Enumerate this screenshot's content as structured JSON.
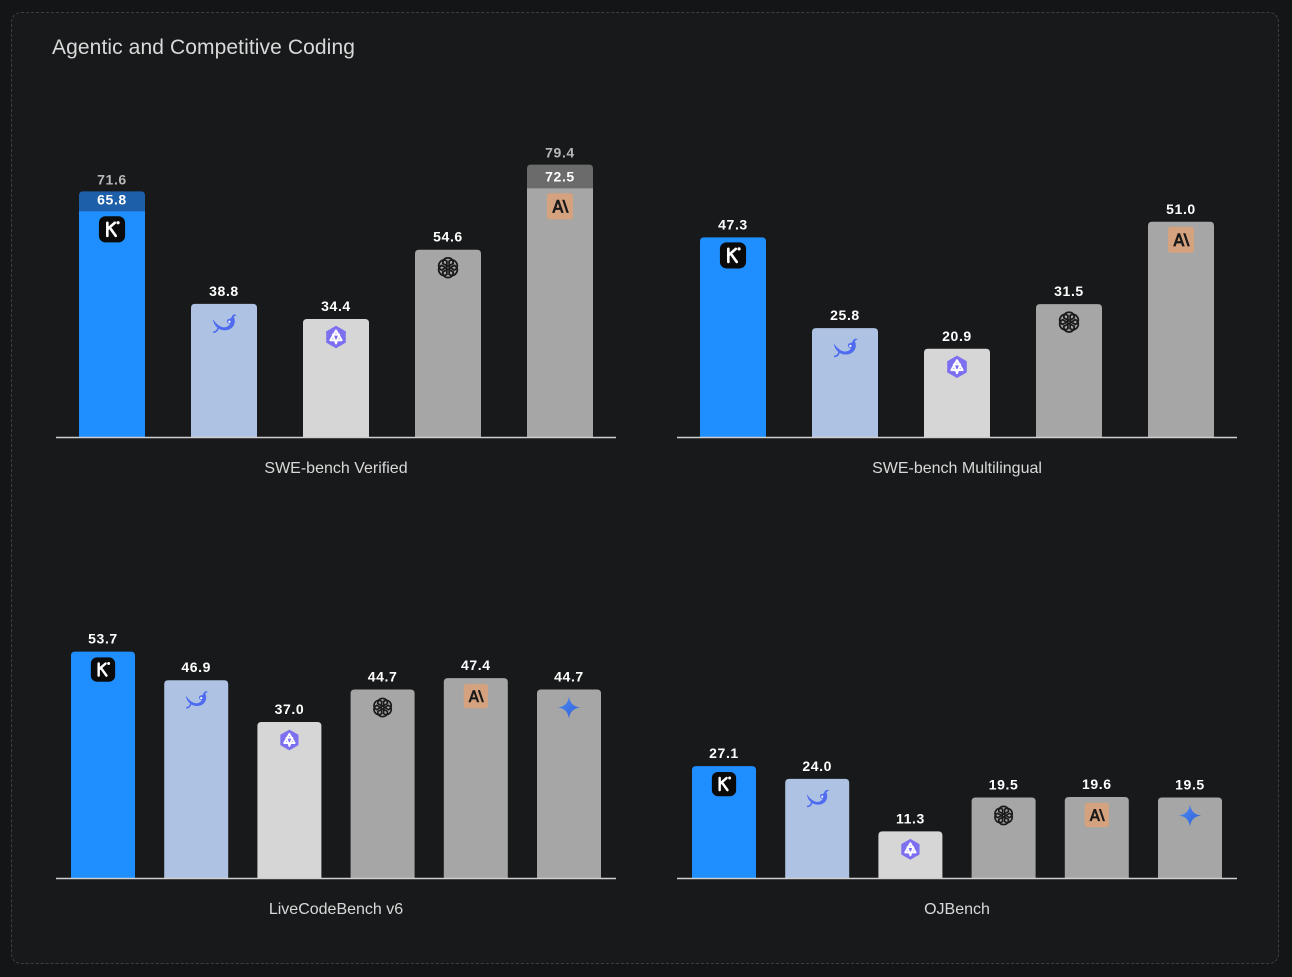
{
  "page": {
    "title": "Agentic and Competitive Coding"
  },
  "colors": {
    "background": "#18191a",
    "kimi": "#1f8fff",
    "kimi_upper": "#1d5fa8",
    "deepseek": "#aec3e3",
    "qwen": "#d6d6d6",
    "openai": "#a6a6a6",
    "anthropic": "#a6a6a6",
    "anthropic_upper": "#6b6b6b",
    "gemini": "#a6a6a6",
    "axis": "#cfcfcf"
  },
  "chart_data": [
    {
      "type": "bar",
      "title": "SWE-bench Verified",
      "ylim": [
        0,
        100
      ],
      "categories": [
        "kimi",
        "deepseek",
        "qwen",
        "openai",
        "anthropic"
      ],
      "values": [
        65.8,
        38.8,
        34.4,
        54.6,
        72.5
      ],
      "upper_values": [
        71.6,
        null,
        null,
        null,
        79.4
      ],
      "labels": [
        "65.8",
        "38.8",
        "34.4",
        "54.6",
        "72.5"
      ],
      "upper_labels": [
        "71.6",
        "",
        "",
        "",
        "79.4"
      ],
      "icons": [
        "kimi-logo-icon",
        "deepseek-whale-icon",
        "qwen-logo-icon",
        "openai-logo-icon",
        "anthropic-logo-icon"
      ]
    },
    {
      "type": "bar",
      "title": "SWE-bench Multilingual",
      "ylim": [
        0,
        100
      ],
      "categories": [
        "kimi",
        "deepseek",
        "qwen",
        "openai",
        "anthropic"
      ],
      "values": [
        47.3,
        25.8,
        20.9,
        31.5,
        51.0
      ],
      "labels": [
        "47.3",
        "25.8",
        "20.9",
        "31.5",
        "51.0"
      ],
      "icons": [
        "kimi-logo-icon",
        "deepseek-whale-icon",
        "qwen-logo-icon",
        "openai-logo-icon",
        "anthropic-logo-icon"
      ]
    },
    {
      "type": "bar",
      "title": "LiveCodeBench v6",
      "ylim": [
        0,
        60
      ],
      "categories": [
        "kimi",
        "deepseek",
        "qwen",
        "openai",
        "anthropic",
        "gemini"
      ],
      "values": [
        53.7,
        46.9,
        37.0,
        44.7,
        47.4,
        44.7
      ],
      "labels": [
        "53.7",
        "46.9",
        "37.0",
        "44.7",
        "47.4",
        "44.7"
      ],
      "icons": [
        "kimi-logo-icon",
        "deepseek-whale-icon",
        "qwen-logo-icon",
        "openai-logo-icon",
        "anthropic-logo-icon",
        "gemini-sparkle-icon"
      ]
    },
    {
      "type": "bar",
      "title": "OJBench",
      "ylim": [
        0,
        100
      ],
      "categories": [
        "kimi",
        "deepseek",
        "qwen",
        "openai",
        "anthropic",
        "gemini"
      ],
      "values": [
        27.1,
        24.0,
        11.3,
        19.5,
        19.6,
        19.5
      ],
      "labels": [
        "27.1",
        "24.0",
        "11.3",
        "19.5",
        "19.6",
        "19.5"
      ],
      "icons": [
        "kimi-logo-icon",
        "deepseek-whale-icon",
        "qwen-logo-icon",
        "openai-logo-icon",
        "anthropic-logo-icon",
        "gemini-sparkle-icon"
      ]
    }
  ]
}
